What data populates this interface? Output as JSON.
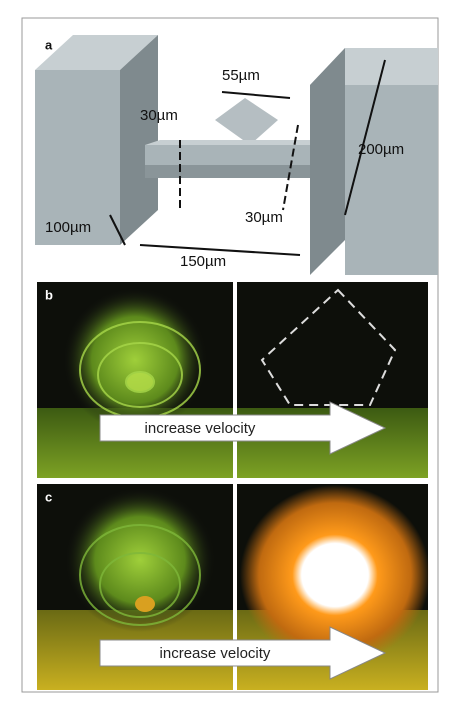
{
  "panels": [
    {
      "label": "a",
      "dimensions": [
        "55µm",
        "30µm",
        "200µm",
        "100µm",
        "30µm",
        "150µm"
      ]
    },
    {
      "label": "b",
      "arrow_text": "increase velocity"
    },
    {
      "label": "c",
      "arrow_text": "increase velocity"
    }
  ]
}
